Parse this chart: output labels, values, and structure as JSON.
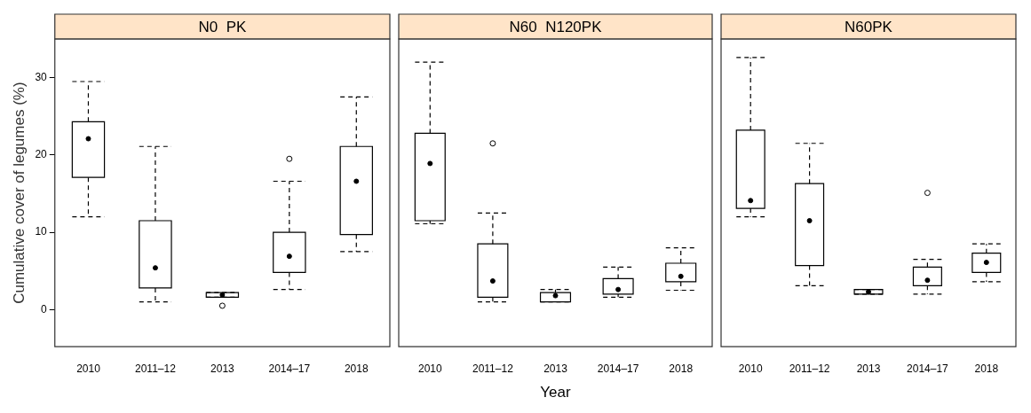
{
  "chart_data": [
    {
      "type": "box",
      "title": "N0  PK",
      "ylabel": "Cumulative cover of legumes (%)",
      "categories": [
        "2010",
        "2011–12",
        "2013",
        "2014–17",
        "2018"
      ],
      "ylim": [
        -4.8,
        35
      ],
      "yticks": [
        0,
        10,
        20,
        30
      ],
      "boxes": [
        {
          "low": 12.0,
          "q1": 17.1,
          "median": 22.1,
          "q3": 24.3,
          "high": 29.5
        },
        {
          "low": 1.0,
          "q1": 2.8,
          "median": 5.4,
          "q3": 11.5,
          "high": 21.1
        },
        {
          "low": 1.6,
          "q1": 1.6,
          "median": 1.9,
          "q3": 2.2,
          "high": 2.2,
          "outliers": [
            0.5
          ]
        },
        {
          "low": 2.6,
          "q1": 4.8,
          "median": 6.9,
          "q3": 10.0,
          "high": 16.6,
          "outliers": [
            19.5
          ]
        },
        {
          "low": 7.5,
          "q1": 9.7,
          "median": 16.6,
          "q3": 21.1,
          "high": 27.5
        }
      ]
    },
    {
      "type": "box",
      "title": "N60  N120PK",
      "xlabel": "Year",
      "categories": [
        "2010",
        "2011–12",
        "2013",
        "2014–17",
        "2018"
      ],
      "ylim": [
        -4.8,
        35
      ],
      "yticks": [
        0,
        10,
        20,
        30
      ],
      "tick_labels": "x",
      "boxes": [
        {
          "low": 11.1,
          "q1": 11.5,
          "median": 18.9,
          "q3": 22.8,
          "high": 32.0
        },
        {
          "low": 1.0,
          "q1": 1.6,
          "median": 3.7,
          "q3": 8.5,
          "high": 12.5,
          "outliers": [
            21.5
          ]
        },
        {
          "low": 1.0,
          "q1": 1.0,
          "median": 1.8,
          "q3": 2.2,
          "high": 2.6
        },
        {
          "low": 1.6,
          "q1": 2.0,
          "median": 2.6,
          "q3": 4.0,
          "high": 5.5
        },
        {
          "low": 2.5,
          "q1": 3.6,
          "median": 4.3,
          "q3": 6.0,
          "high": 8.0
        }
      ]
    },
    {
      "type": "box",
      "title": "N60PK",
      "categories": [
        "2010",
        "2011–12",
        "2013",
        "2014–17",
        "2018"
      ],
      "ylim": [
        -4.8,
        35
      ],
      "yticks": [
        0,
        10,
        20,
        30
      ],
      "tick_labels": "x",
      "boxes": [
        {
          "low": 12.0,
          "q1": 13.1,
          "median": 14.1,
          "q3": 23.2,
          "high": 32.6
        },
        {
          "low": 3.1,
          "q1": 5.7,
          "median": 11.5,
          "q3": 16.3,
          "high": 21.5
        },
        {
          "low": 2.0,
          "q1": 2.0,
          "median": 2.3,
          "q3": 2.6,
          "high": 2.6
        },
        {
          "low": 2.0,
          "q1": 3.1,
          "median": 3.8,
          "q3": 5.5,
          "high": 6.5,
          "outliers": [
            15.1
          ]
        },
        {
          "low": 3.6,
          "q1": 4.8,
          "median": 6.1,
          "q3": 7.3,
          "high": 8.5
        }
      ]
    }
  ]
}
